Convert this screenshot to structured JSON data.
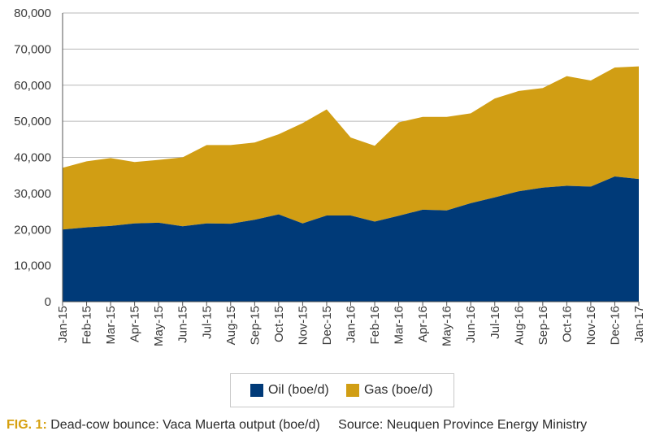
{
  "caption": {
    "fig_label": "FIG. 1:",
    "text": "Dead-cow bounce: Vaca Muerta output (boe/d)",
    "source": "Source: Neuquen Province Energy Ministry"
  },
  "colors": {
    "oil": "#003a78",
    "gas": "#d19e14",
    "grid": "#b8b8b8"
  },
  "chart_data": {
    "type": "area",
    "stacked": true,
    "categories": [
      "Jan-15",
      "Feb-15",
      "Mar-15",
      "Apr-15",
      "May-15",
      "Jun-15",
      "Jul-15",
      "Aug-15",
      "Sep-15",
      "Oct-15",
      "Nov-15",
      "Dec-15",
      "Jan-16",
      "Feb-16",
      "Mar-16",
      "Apr-16",
      "May-16",
      "Jun-16",
      "Jul-16",
      "Aug-16",
      "Sep-16",
      "Oct-16",
      "Nov-16",
      "Dec-16",
      "Jan-17"
    ],
    "series": [
      {
        "name": "Oil (boe/d)",
        "values": [
          20000,
          20600,
          21000,
          21700,
          21900,
          20900,
          21700,
          21600,
          22700,
          24200,
          21700,
          23900,
          23900,
          22200,
          23800,
          25500,
          25300,
          27300,
          28900,
          30600,
          31600,
          32100,
          31900,
          34700,
          34000
        ]
      },
      {
        "name": "Gas (boe/d)",
        "values": [
          17100,
          18300,
          18800,
          17000,
          17400,
          19100,
          21700,
          21800,
          21400,
          22200,
          27800,
          29400,
          21600,
          21000,
          25900,
          25700,
          25900,
          24900,
          27400,
          27800,
          27600,
          30400,
          29400,
          30200,
          31200
        ]
      }
    ],
    "totals": [
      37100,
      38900,
      39800,
      38700,
      39300,
      40000,
      43400,
      43400,
      44100,
      46400,
      49500,
      53300,
      45500,
      43200,
      49700,
      51200,
      51200,
      52200,
      56300,
      58400,
      59200,
      62500,
      61300,
      64900,
      65200
    ],
    "ylim": [
      0,
      80000
    ],
    "yticks": [
      0,
      10000,
      20000,
      30000,
      40000,
      50000,
      60000,
      70000,
      80000
    ],
    "ytick_labels": [
      "0",
      "10,000",
      "20,000",
      "30,000",
      "40,000",
      "50,000",
      "60,000",
      "70,000",
      "80,000"
    ],
    "grid": true,
    "legend_position": "bottom"
  }
}
